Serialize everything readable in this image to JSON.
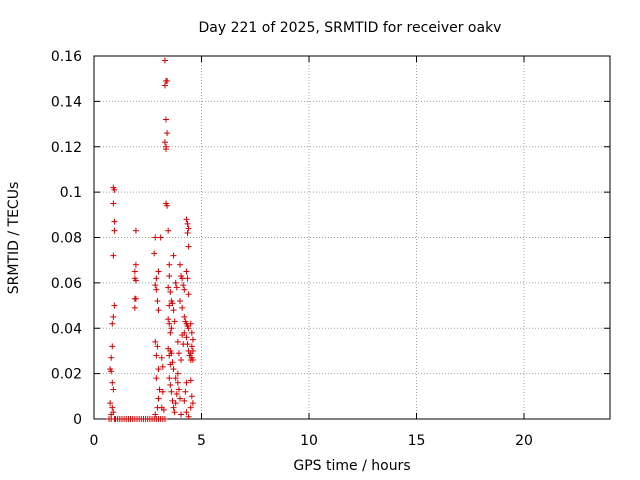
{
  "chart_data": {
    "type": "scatter",
    "title": "Day 221 of 2025, SRMTID for receiver oakv",
    "xlabel": "GPS time / hours",
    "ylabel": "SRMTID / TECUs",
    "xlim": [
      0,
      24
    ],
    "ylim": [
      0,
      0.16
    ],
    "xticks": [
      0,
      5,
      10,
      15,
      20
    ],
    "xtick_labels": [
      "0",
      "5",
      "10",
      "15",
      "20"
    ],
    "yticks": [
      0,
      0.02,
      0.04,
      0.06,
      0.08,
      0.1,
      0.12,
      0.14,
      0.16
    ],
    "ytick_labels": [
      "0",
      "0.02",
      "0.04",
      "0.06",
      "0.08",
      "0.1",
      "0.12",
      "0.14",
      "0.16"
    ],
    "grid": true,
    "marker": "+",
    "color": "#d20000",
    "series": [
      {
        "name": "SRMTID",
        "points": [
          [
            0.7,
            0
          ],
          [
            0.8,
            0
          ],
          [
            0.85,
            0.005
          ],
          [
            0.9,
            0.003
          ],
          [
            0.95,
            0
          ],
          [
            1.0,
            0
          ],
          [
            1.1,
            0
          ],
          [
            1.2,
            0
          ],
          [
            1.3,
            0
          ],
          [
            1.4,
            0
          ],
          [
            1.5,
            0
          ],
          [
            1.6,
            0
          ],
          [
            1.7,
            0
          ],
          [
            1.8,
            0
          ],
          [
            1.9,
            0
          ],
          [
            2.0,
            0
          ],
          [
            2.1,
            0
          ],
          [
            2.2,
            0
          ],
          [
            2.3,
            0
          ],
          [
            2.4,
            0
          ],
          [
            2.5,
            0
          ],
          [
            2.6,
            0
          ],
          [
            2.7,
            0
          ],
          [
            2.8,
            0
          ],
          [
            2.9,
            0
          ],
          [
            3.0,
            0
          ],
          [
            3.1,
            0
          ],
          [
            3.2,
            0
          ],
          [
            3.3,
            0
          ],
          [
            0.75,
            0.022
          ],
          [
            0.8,
            0.027
          ],
          [
            0.85,
            0.032
          ],
          [
            0.8,
            0.021
          ],
          [
            0.85,
            0.016
          ],
          [
            0.9,
            0.013
          ],
          [
            0.75,
            0.007
          ],
          [
            0.8,
            0.002
          ],
          [
            0.85,
            0.042
          ],
          [
            0.9,
            0.045
          ],
          [
            0.95,
            0.05
          ],
          [
            0.9,
            0.072
          ],
          [
            0.95,
            0.083
          ],
          [
            0.95,
            0.087
          ],
          [
            0.9,
            0.095
          ],
          [
            0.9,
            0.102
          ],
          [
            0.95,
            0.101
          ],
          [
            1.95,
            0.083
          ],
          [
            1.95,
            0.068
          ],
          [
            1.9,
            0.065
          ],
          [
            1.9,
            0.062
          ],
          [
            1.95,
            0.061
          ],
          [
            1.9,
            0.053
          ],
          [
            1.95,
            0.053
          ],
          [
            1.9,
            0.049
          ],
          [
            2.8,
            0.073
          ],
          [
            2.85,
            0.08
          ],
          [
            2.9,
            0.062
          ],
          [
            2.85,
            0.059
          ],
          [
            2.9,
            0.057
          ],
          [
            2.95,
            0.052
          ],
          [
            3.0,
            0.048
          ],
          [
            3.0,
            0.065
          ],
          [
            2.85,
            0.034
          ],
          [
            2.9,
            0.028
          ],
          [
            2.95,
            0.032
          ],
          [
            3.0,
            0.022
          ],
          [
            2.9,
            0.018
          ],
          [
            3.05,
            0.013
          ],
          [
            3.0,
            0.009
          ],
          [
            2.95,
            0.005
          ],
          [
            2.85,
            0.002
          ],
          [
            3.1,
            0.08
          ],
          [
            3.15,
            0.027
          ],
          [
            3.2,
            0.023
          ],
          [
            3.2,
            0.012
          ],
          [
            3.15,
            0.005
          ],
          [
            3.25,
            0.004
          ],
          [
            3.3,
            0.158
          ],
          [
            3.3,
            0.147
          ],
          [
            3.35,
            0.149
          ],
          [
            3.4,
            0.149
          ],
          [
            3.35,
            0.132
          ],
          [
            3.4,
            0.126
          ],
          [
            3.3,
            0.122
          ],
          [
            3.35,
            0.12
          ],
          [
            3.35,
            0.119
          ],
          [
            3.35,
            0.095
          ],
          [
            3.4,
            0.094
          ],
          [
            3.45,
            0.083
          ],
          [
            3.5,
            0.068
          ],
          [
            3.5,
            0.063
          ],
          [
            3.45,
            0.058
          ],
          [
            3.55,
            0.056
          ],
          [
            3.5,
            0.05
          ],
          [
            3.6,
            0.052
          ],
          [
            3.65,
            0.051
          ],
          [
            3.45,
            0.044
          ],
          [
            3.5,
            0.042
          ],
          [
            3.55,
            0.038
          ],
          [
            3.45,
            0.031
          ],
          [
            3.5,
            0.028
          ],
          [
            3.55,
            0.03
          ],
          [
            3.6,
            0.029
          ],
          [
            3.65,
            0.025
          ],
          [
            3.7,
            0.022
          ],
          [
            3.5,
            0.018
          ],
          [
            3.55,
            0.015
          ],
          [
            3.6,
            0.012
          ],
          [
            3.65,
            0.008
          ],
          [
            3.7,
            0.005
          ],
          [
            3.75,
            0.003
          ],
          [
            3.8,
            0.007
          ],
          [
            3.85,
            0.011
          ],
          [
            3.9,
            0.016
          ],
          [
            3.95,
            0.013
          ],
          [
            3.8,
            0.018
          ],
          [
            3.9,
            0.02
          ],
          [
            4.0,
            0.009
          ],
          [
            4.05,
            0.002
          ],
          [
            3.7,
            0.072
          ],
          [
            3.8,
            0.06
          ],
          [
            3.85,
            0.058
          ],
          [
            4.0,
            0.068
          ],
          [
            4.05,
            0.063
          ],
          [
            4.1,
            0.062
          ],
          [
            4.15,
            0.059
          ],
          [
            4.2,
            0.057
          ],
          [
            4.0,
            0.052
          ],
          [
            4.1,
            0.049
          ],
          [
            4.2,
            0.045
          ],
          [
            4.25,
            0.043
          ],
          [
            4.3,
            0.042
          ],
          [
            4.35,
            0.041
          ],
          [
            4.4,
            0.04
          ],
          [
            4.2,
            0.038
          ],
          [
            4.3,
            0.036
          ],
          [
            4.35,
            0.033
          ],
          [
            4.4,
            0.03
          ],
          [
            4.45,
            0.028
          ],
          [
            4.5,
            0.026
          ],
          [
            4.3,
            0.088
          ],
          [
            4.35,
            0.086
          ],
          [
            4.4,
            0.084
          ],
          [
            4.35,
            0.082
          ],
          [
            4.4,
            0.076
          ],
          [
            4.3,
            0.065
          ],
          [
            4.35,
            0.062
          ],
          [
            4.4,
            0.055
          ],
          [
            4.5,
            0.042
          ],
          [
            4.55,
            0.038
          ],
          [
            4.6,
            0.035
          ],
          [
            4.55,
            0.032
          ],
          [
            4.6,
            0.03
          ],
          [
            4.5,
            0.029
          ],
          [
            4.55,
            0.027
          ],
          [
            4.6,
            0.026
          ],
          [
            4.5,
            0.017
          ],
          [
            4.55,
            0.01
          ],
          [
            4.6,
            0.007
          ],
          [
            4.5,
            0.005
          ],
          [
            4.3,
            0.016
          ],
          [
            4.25,
            0.012
          ],
          [
            4.2,
            0.008
          ],
          [
            4.3,
            0.003
          ],
          [
            4.4,
            0.001
          ],
          [
            4.1,
            0.037
          ],
          [
            4.15,
            0.033
          ],
          [
            4.05,
            0.026
          ],
          [
            3.95,
            0.029
          ],
          [
            3.9,
            0.034
          ],
          [
            3.75,
            0.043
          ],
          [
            3.7,
            0.048
          ],
          [
            3.6,
            0.04
          ],
          [
            3.55,
            0.024
          ]
        ]
      }
    ]
  }
}
